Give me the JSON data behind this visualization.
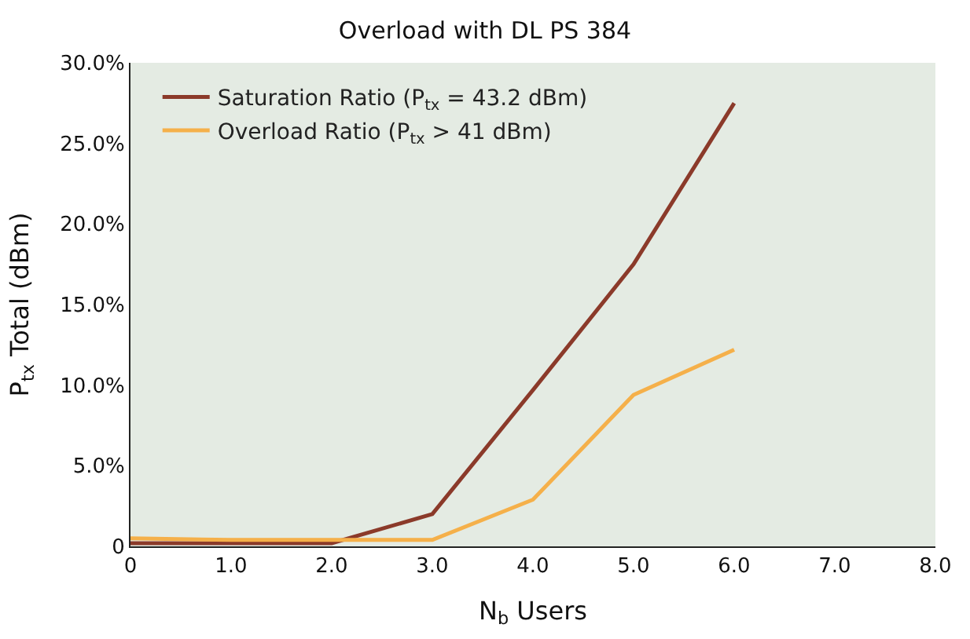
{
  "chart_data": {
    "type": "line",
    "title": "Overload with DL PS 384",
    "xlabel": "N$_{b}$ Users",
    "ylabel": "P$_{tx}$ Total (dBm)",
    "x": [
      0,
      1,
      2,
      3,
      4,
      5,
      6
    ],
    "series": [
      {
        "name": "Saturation Ratio (P$_{tx}$ = 43.2 dBm)",
        "color": "#8b3a2a",
        "values": [
          0.2,
          0.2,
          0.2,
          2.0,
          9.7,
          17.5,
          27.5
        ]
      },
      {
        "name": "Overload Ratio (P$_{tx}$ > 41 dBm)",
        "color": "#f5b04a",
        "values": [
          0.5,
          0.4,
          0.4,
          0.4,
          2.9,
          9.4,
          12.2
        ]
      }
    ],
    "xlim": [
      0,
      8
    ],
    "xticks": [
      0,
      {
        "value": 1,
        "label": "1.0"
      },
      {
        "value": 2,
        "label": "2.0"
      },
      {
        "value": 3,
        "label": "3.0"
      },
      {
        "value": 4,
        "label": "4.0"
      },
      {
        "value": 5,
        "label": "5.0"
      },
      {
        "value": 6,
        "label": "6.0"
      },
      {
        "value": 7,
        "label": "7.0"
      },
      {
        "value": 8,
        "label": "8.0"
      }
    ],
    "ylim": [
      0,
      30
    ],
    "yticks": [
      0,
      {
        "value": 5,
        "label": "5.0%"
      },
      {
        "value": 10,
        "label": "10.0%"
      },
      {
        "value": 15,
        "label": "15.0%"
      },
      {
        "value": 20,
        "label": "20.0%"
      },
      {
        "value": 25,
        "label": "25.0%"
      },
      {
        "value": 30,
        "label": "30.0%"
      }
    ],
    "legend": "top left",
    "grid": false,
    "marker": "none",
    "line_style": "solid"
  }
}
